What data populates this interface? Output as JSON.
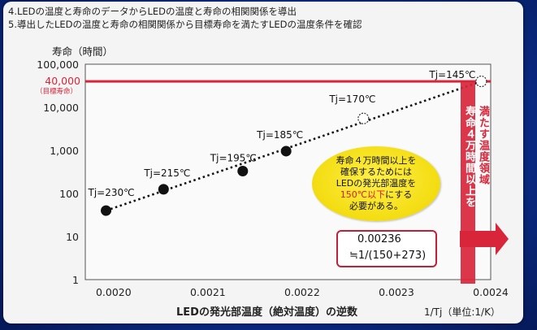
{
  "notes": [
    "4.LEDの温度と寿命のデータからLEDの温度と寿命の相関関係を導出",
    "5.導出したLEDの温度と寿命の相関関係から目標寿命を満たすLEDの温度条件を確認"
  ],
  "chart_data": {
    "type": "scatter",
    "ylabel": "寿命（時間）",
    "xlabel": "LEDの発光部温度（絶対温度）の逆数",
    "xunit": "1/Tj（単位:1/K）",
    "y_scale": "log",
    "ylim": [
      1,
      100000
    ],
    "xlim": [
      0.00197,
      0.0024
    ],
    "y_ticks": [
      "1",
      "10",
      "100",
      "1,000",
      "10,000",
      "100,000"
    ],
    "x_ticks": [
      "0.0020",
      "0.0021",
      "0.0022",
      "0.0023",
      "0.0024"
    ],
    "x_tick_values": [
      0.002,
      0.0021,
      0.0022,
      0.0023,
      0.0024
    ],
    "target_value": "40,000",
    "target_label": "（目標寿命）",
    "points": [
      {
        "label": "Tj=230℃",
        "x": 0.001992,
        "y": 40
      },
      {
        "label": "Tj=215℃",
        "x": 0.002053,
        "y": 125
      },
      {
        "label": "Tj=195℃",
        "x": 0.002137,
        "y": 330
      },
      {
        "label": "Tj=185℃",
        "x": 0.002183,
        "y": 960
      }
    ],
    "projected": [
      {
        "label": "Tj=170℃",
        "x": 0.002265,
        "y": 5500
      },
      {
        "label": "Tj=145℃",
        "x": 0.00239,
        "y": 40000
      }
    ],
    "callout": [
      "寿命４万時間以上を",
      "確保するためには",
      "LEDの発光部温度を",
      "150℃以下",
      "にする",
      "必要がある。"
    ],
    "formula": [
      "0.00236",
      "≒1/(150+273)"
    ],
    "region_label_a": "寿命４万時間以上を",
    "region_label_b": "満たす温度領域",
    "colors": {
      "target": "#d8253a",
      "points": "#111111",
      "callout": "#f3dc10",
      "region": "#d8253a"
    }
  }
}
